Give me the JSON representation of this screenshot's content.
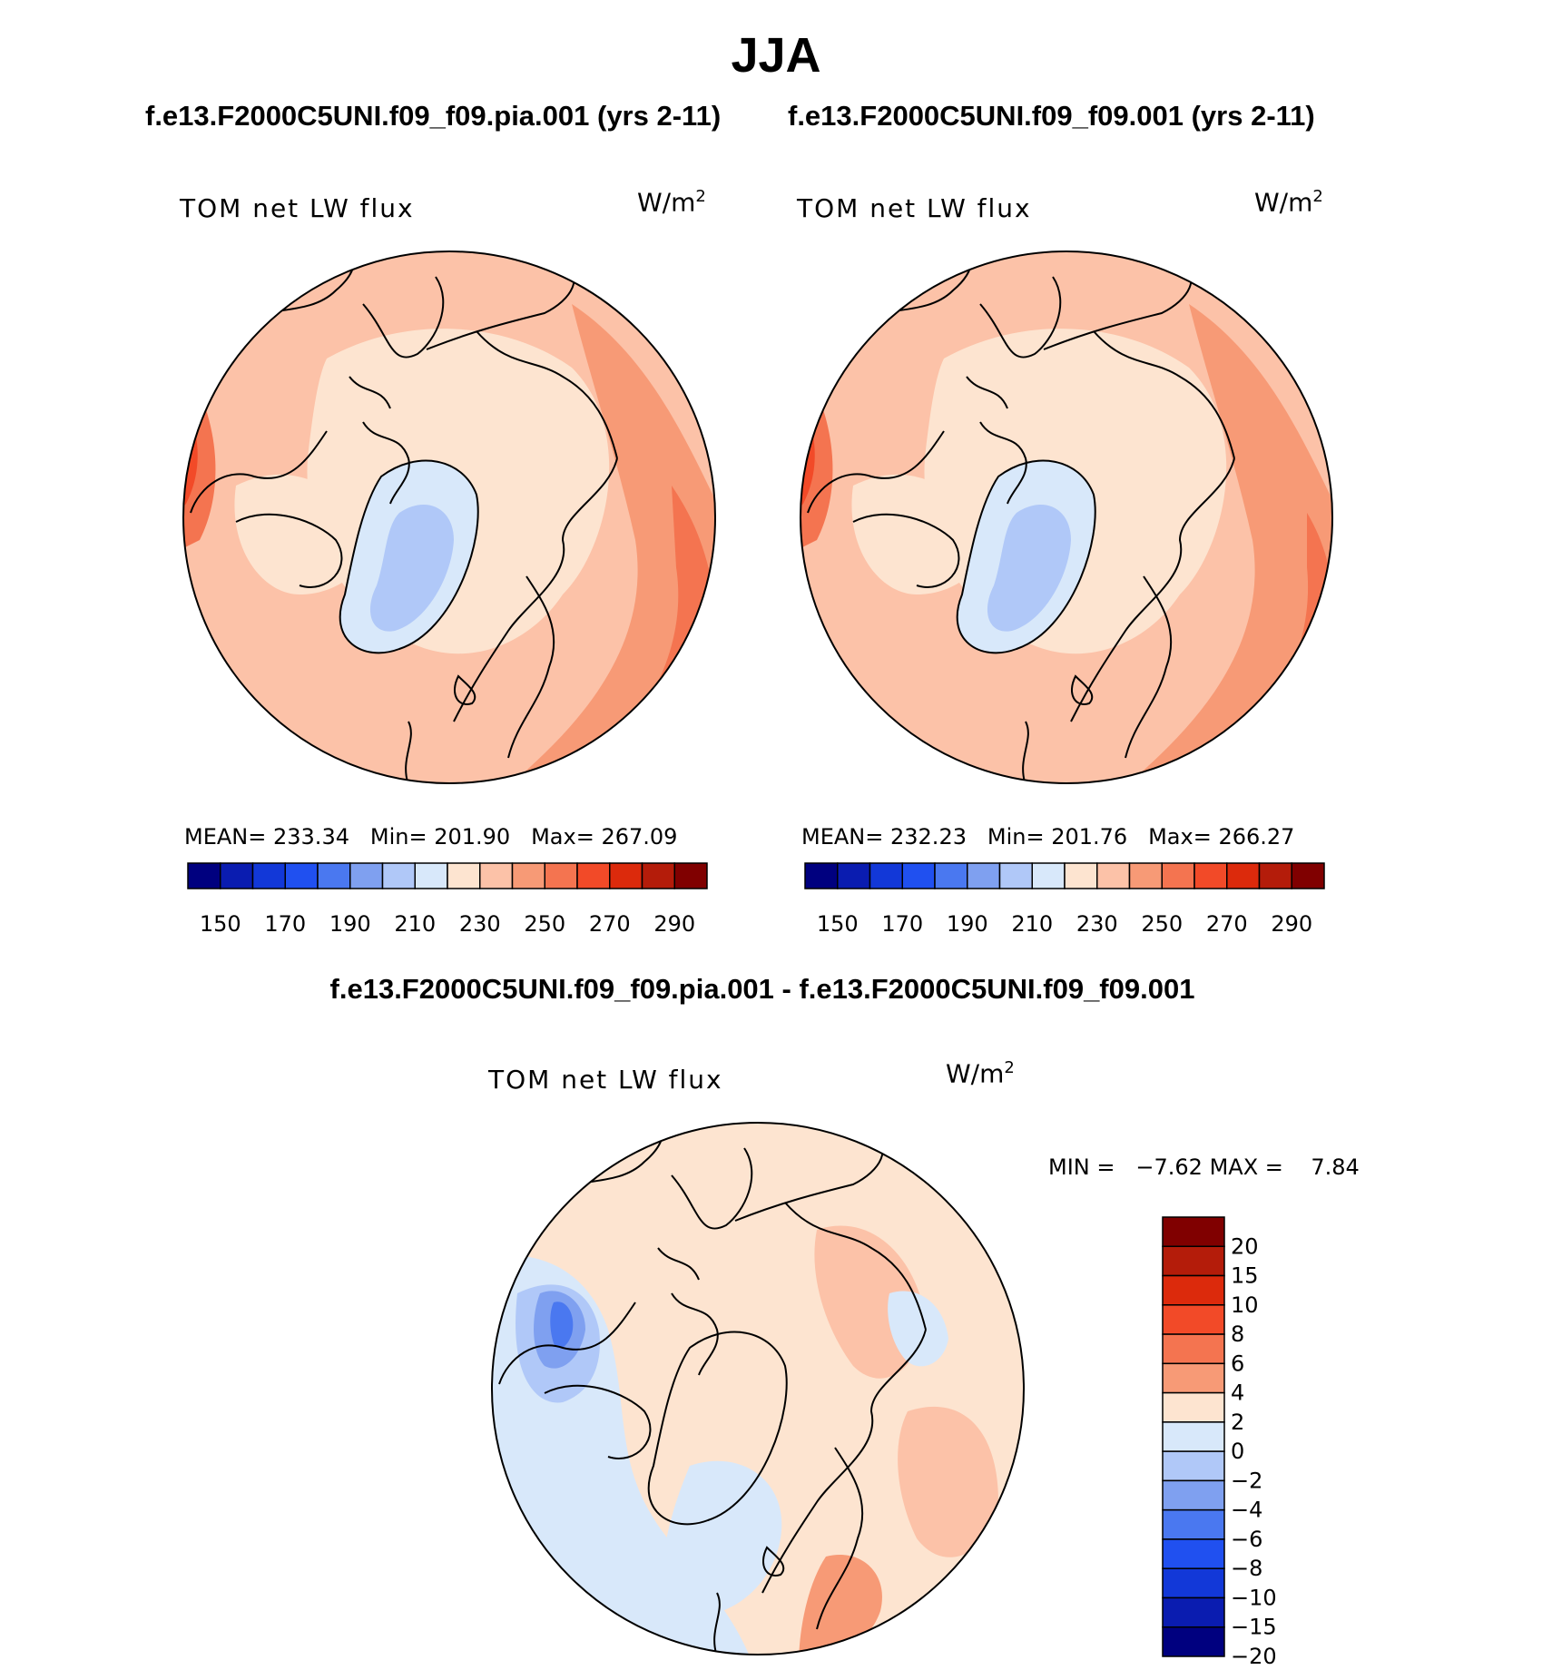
{
  "title": "JJA",
  "chart_data": [
    {
      "type": "heatmap",
      "projection": "north polar stereographic",
      "title": "f.e13.F2000C5UNI.f09_f09.pia.001 (yrs 2-11)",
      "variable": "TOM net LW flux",
      "units": "W/m2",
      "units_text": "W/m",
      "units_sup": "2",
      "stats": {
        "mean_label": "MEAN=",
        "mean": "233.34",
        "min_label": "Min=",
        "min": "201.90",
        "max_label": "Max=",
        "max": "267.09"
      },
      "colorbar": {
        "orientation": "horizontal",
        "levels": [
          "150",
          "170",
          "190",
          "210",
          "230",
          "250",
          "270",
          "290"
        ]
      }
    },
    {
      "type": "heatmap",
      "projection": "north polar stereographic",
      "title": "f.e13.F2000C5UNI.f09_f09.001 (yrs 2-11)",
      "variable": "TOM net LW flux",
      "units": "W/m2",
      "units_text": "W/m",
      "units_sup": "2",
      "stats": {
        "mean_label": "MEAN=",
        "mean": "232.23",
        "min_label": "Min=",
        "min": "201.76",
        "max_label": "Max=",
        "max": "266.27"
      },
      "colorbar": {
        "orientation": "horizontal",
        "levels": [
          "150",
          "170",
          "190",
          "210",
          "230",
          "250",
          "270",
          "290"
        ]
      }
    },
    {
      "type": "heatmap",
      "projection": "north polar stereographic",
      "title": "f.e13.F2000C5UNI.f09_f09.pia.001 - f.e13.F2000C5UNI.f09_f09.001",
      "variable": "TOM net LW flux",
      "units": "W/m2",
      "units_text": "W/m",
      "units_sup": "2",
      "stats": {
        "min_label": "MIN =",
        "min": "−7.62",
        "max_label": "MAX =",
        "max": "7.84"
      },
      "colorbar": {
        "orientation": "vertical",
        "levels": [
          "20",
          "15",
          "10",
          "8",
          "6",
          "4",
          "2",
          "0",
          "−2",
          "−4",
          "−6",
          "−8",
          "−10",
          "−15",
          "−20"
        ]
      }
    }
  ],
  "colors": {
    "abs_scale": [
      "#00007f",
      "#0a1cb0",
      "#1238d8",
      "#2050f0",
      "#4a78f0",
      "#7fa0f0",
      "#b0c8f8",
      "#d8e8fa",
      "#fde4d0",
      "#fcc2a8",
      "#f79a76",
      "#f47450",
      "#f24a28",
      "#dc2a0c",
      "#b41c0a",
      "#800000"
    ],
    "diff_scale": [
      "#800000",
      "#b41c0a",
      "#dc2a0c",
      "#f24a28",
      "#f47450",
      "#f79a76",
      "#fde4d0",
      "#d8e8fa",
      "#b0c8f8",
      "#7fa0f0",
      "#4a78f0",
      "#2050f0",
      "#1238d8",
      "#0a1cb0",
      "#00007f"
    ]
  }
}
